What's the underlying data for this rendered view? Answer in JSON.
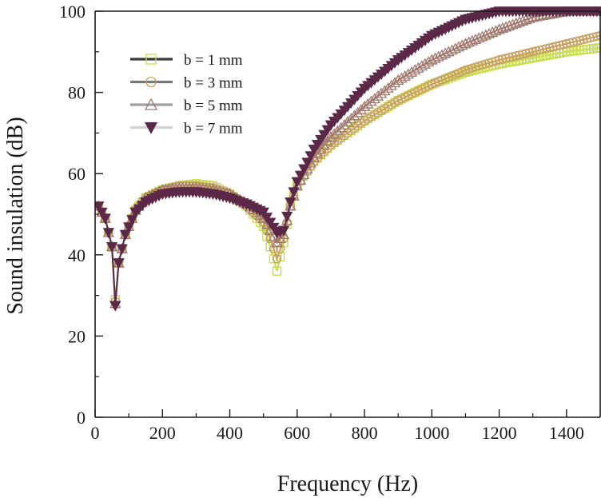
{
  "chart_data": {
    "type": "line",
    "xlabel": "Frequency (Hz)",
    "ylabel": "Sound insulation (dB)",
    "xlim": [
      0,
      1500
    ],
    "ylim": [
      0,
      100
    ],
    "x_ticks": [
      "0",
      "200",
      "400",
      "600",
      "800",
      "1000",
      "1200",
      "1400"
    ],
    "y_ticks": [
      "0",
      "20",
      "40",
      "60",
      "80",
      "100"
    ],
    "grid": false,
    "legend_position": "top-left",
    "x": [
      10,
      30,
      50,
      60,
      70,
      90,
      120,
      150,
      200,
      250,
      300,
      350,
      400,
      450,
      500,
      520,
      540,
      560,
      580,
      600,
      650,
      700,
      800,
      900,
      1000,
      1100,
      1200,
      1300,
      1400,
      1500
    ],
    "series": [
      {
        "name": "b = 1 mm",
        "color": "#c8dc50",
        "line_color": "#3c3c3c",
        "marker": "square",
        "values": [
          52,
          49,
          42,
          29,
          38,
          45,
          51,
          54,
          56,
          57,
          57.5,
          57,
          55,
          52,
          47,
          42,
          36,
          43,
          52,
          57,
          63,
          67,
          73,
          78,
          82,
          85,
          87,
          88.5,
          90,
          91
        ]
      },
      {
        "name": "b = 3 mm",
        "color": "#c8a064",
        "line_color": "#787878",
        "marker": "circle",
        "values": [
          52,
          49,
          42,
          28.5,
          38,
          45,
          51,
          54,
          56,
          57,
          57,
          56.5,
          55,
          52,
          48,
          44,
          39,
          44,
          52,
          57,
          63,
          67,
          73,
          78,
          82,
          85.5,
          88,
          90,
          92,
          94
        ]
      },
      {
        "name": "b = 5 mm",
        "color": "#a0786e",
        "line_color": "#a0a0a0",
        "marker": "triangle-up",
        "values": [
          52,
          49,
          42,
          28,
          38,
          45,
          51,
          54,
          56,
          56.5,
          56.5,
          56,
          55,
          52.5,
          49,
          46,
          43,
          45,
          52,
          57,
          64,
          69,
          76.5,
          83,
          88,
          92,
          95.5,
          98.5,
          100,
          100
        ]
      },
      {
        "name": "b = 7 mm",
        "color": "#5c2848",
        "line_color": "#d2d2d2",
        "marker": "triangle-down",
        "values": [
          52,
          49,
          42,
          27.5,
          38,
          45,
          50.5,
          53,
          55,
          55.5,
          55.5,
          55,
          54,
          52.5,
          50.5,
          48,
          45.5,
          46,
          53,
          58,
          66,
          72,
          81,
          88,
          94,
          98,
          100,
          100,
          100,
          100
        ]
      }
    ]
  }
}
